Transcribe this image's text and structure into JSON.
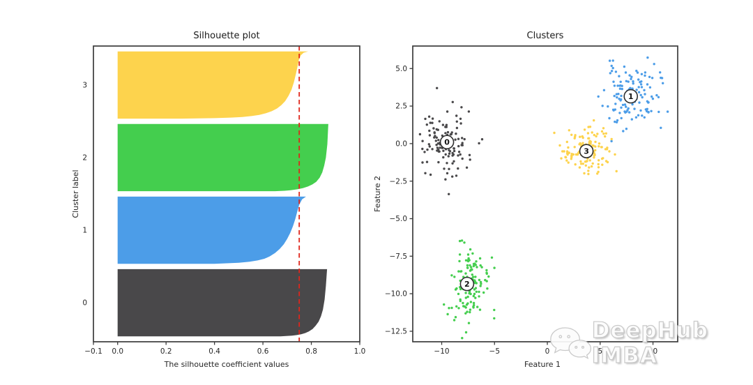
{
  "watermark": {
    "text": "DeepHub IMBA",
    "icon": "wechat-chat-bubbles-icon"
  },
  "colors": {
    "cluster0": "#49484a",
    "cluster1": "#4c9de8",
    "cluster2": "#44ce4e",
    "cluster3": "#fdd34d",
    "red_line": "#e0251b",
    "axis": "#3b3b3b",
    "text": "#262626"
  },
  "chart_data": [
    {
      "type": "area",
      "title": "Silhouette plot",
      "xlabel": "The silhouette coefficient values",
      "ylabel": "Cluster label",
      "xlim": [
        -0.1,
        1.0
      ],
      "xticks": [
        -0.1,
        0.0,
        0.2,
        0.4,
        0.6,
        0.8,
        1.0
      ],
      "gap_units": 10,
      "avg_silhouette": 0.75,
      "grid": false,
      "clusters": [
        {
          "label": "0",
          "color_key": "cluster0",
          "count": 125,
          "max": 0.87,
          "min": 0.67,
          "profile": [
            [
              0,
              0.865
            ],
            [
              0.25,
              0.86
            ],
            [
              0.45,
              0.855
            ],
            [
              0.6,
              0.848
            ],
            [
              0.7,
              0.84
            ],
            [
              0.78,
              0.83
            ],
            [
              0.84,
              0.818
            ],
            [
              0.89,
              0.805
            ],
            [
              0.925,
              0.79
            ],
            [
              0.95,
              0.775
            ],
            [
              0.968,
              0.758
            ],
            [
              0.98,
              0.74
            ],
            [
              0.99,
              0.72
            ],
            [
              1,
              0.672
            ]
          ]
        },
        {
          "label": "1",
          "color_key": "cluster1",
          "count": 125,
          "max": 0.78,
          "min": 0.4,
          "profile": [
            [
              0,
              0.778
            ],
            [
              0.04,
              0.762
            ],
            [
              0.12,
              0.75
            ],
            [
              0.22,
              0.742
            ],
            [
              0.33,
              0.734
            ],
            [
              0.44,
              0.724
            ],
            [
              0.54,
              0.713
            ],
            [
              0.63,
              0.7
            ],
            [
              0.71,
              0.686
            ],
            [
              0.78,
              0.669
            ],
            [
              0.84,
              0.65
            ],
            [
              0.89,
              0.628
            ],
            [
              0.925,
              0.606
            ],
            [
              0.95,
              0.578
            ],
            [
              0.97,
              0.545
            ],
            [
              0.985,
              0.5
            ],
            [
              1,
              0.4
            ]
          ]
        },
        {
          "label": "2",
          "color_key": "cluster2",
          "count": 125,
          "max": 0.87,
          "min": 0.65,
          "profile": [
            [
              0,
              0.87
            ],
            [
              0.3,
              0.866
            ],
            [
              0.5,
              0.86
            ],
            [
              0.62,
              0.853
            ],
            [
              0.72,
              0.845
            ],
            [
              0.8,
              0.834
            ],
            [
              0.86,
              0.82
            ],
            [
              0.9,
              0.804
            ],
            [
              0.93,
              0.786
            ],
            [
              0.955,
              0.765
            ],
            [
              0.972,
              0.742
            ],
            [
              0.985,
              0.715
            ],
            [
              0.993,
              0.69
            ],
            [
              1,
              0.65
            ]
          ]
        },
        {
          "label": "3",
          "color_key": "cluster3",
          "count": 125,
          "max": 0.79,
          "min": 0.26,
          "profile": [
            [
              0,
              0.787
            ],
            [
              0.02,
              0.768
            ],
            [
              0.06,
              0.756
            ],
            [
              0.12,
              0.749
            ],
            [
              0.22,
              0.743
            ],
            [
              0.34,
              0.736
            ],
            [
              0.46,
              0.728
            ],
            [
              0.57,
              0.718
            ],
            [
              0.66,
              0.706
            ],
            [
              0.74,
              0.692
            ],
            [
              0.8,
              0.676
            ],
            [
              0.85,
              0.658
            ],
            [
              0.89,
              0.636
            ],
            [
              0.92,
              0.612
            ],
            [
              0.945,
              0.585
            ],
            [
              0.962,
              0.553
            ],
            [
              0.975,
              0.515
            ],
            [
              0.985,
              0.468
            ],
            [
              0.993,
              0.4
            ],
            [
              1,
              0.26
            ]
          ]
        }
      ]
    },
    {
      "type": "scatter",
      "title": "Clusters",
      "xlabel": "Feature 1",
      "ylabel": "Feature 2",
      "xlim": [
        -12.74,
        12.34
      ],
      "ylim": [
        -13.2,
        6.5
      ],
      "xticks": [
        -10,
        -5,
        0,
        5,
        10
      ],
      "yticks": [
        5.0,
        2.5,
        0.0,
        -2.5,
        -5.0,
        -7.5,
        -10.0,
        -12.5
      ],
      "grid": false,
      "clusters": [
        {
          "label": "0",
          "color_key": "cluster0",
          "center": [
            -9.5,
            0.1
          ],
          "std": [
            1.1,
            1.1
          ],
          "count": 125,
          "seed": 7
        },
        {
          "label": "1",
          "color_key": "cluster1",
          "center": [
            7.9,
            3.15
          ],
          "std": [
            1.3,
            1.05
          ],
          "count": 125,
          "seed": 11
        },
        {
          "label": "2",
          "color_key": "cluster2",
          "center": [
            -7.6,
            -9.35
          ],
          "std": [
            1.0,
            1.3
          ],
          "count": 125,
          "seed": 13
        },
        {
          "label": "3",
          "color_key": "cluster3",
          "center": [
            3.7,
            -0.5
          ],
          "std": [
            1.25,
            1.0
          ],
          "count": 125,
          "seed": 17
        }
      ]
    }
  ]
}
